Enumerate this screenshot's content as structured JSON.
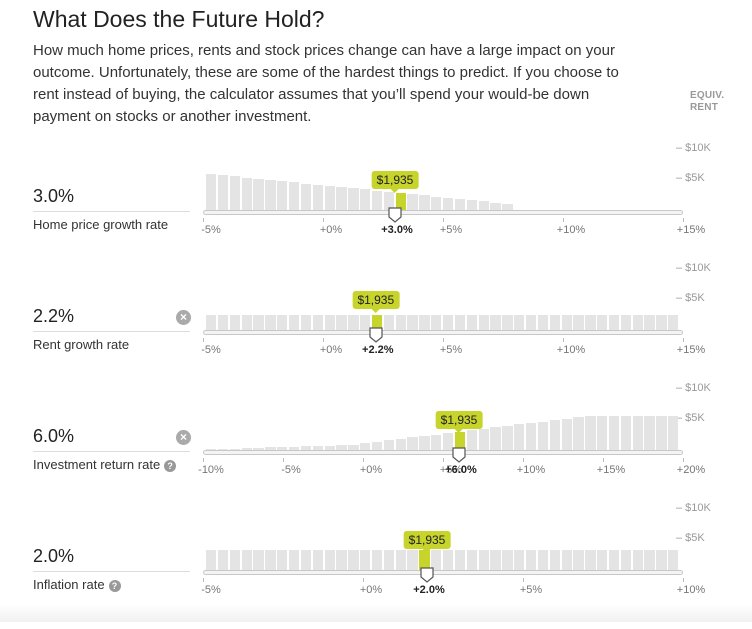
{
  "header": {
    "title": "What Does the Future Hold?",
    "description": "How much home prices, rents and stock prices change can have a large impact on your outcome. Unfortunately, these are some of the hardest things to predict. If you choose to rent instead of buying, the calculator assumes that you’ll spend your would-be down payment on stocks or another investment.",
    "equiv_label": "EQUIV. RENT"
  },
  "scale_labels": [
    "– $10K",
    "– $5K"
  ],
  "icons": {
    "clear": "clear-x-icon",
    "help": "question-mark-icon",
    "handle": "slider-handle-icon"
  },
  "colors": {
    "accent": "#c7d42b",
    "bar": "#e4e4e4"
  },
  "sliders": [
    {
      "id": "home-price",
      "value_display": "3.0%",
      "label": "Home price growth rate",
      "has_help": false,
      "has_clear": false,
      "min": -5,
      "max": 15,
      "value": 3.0,
      "ticks": [
        {
          "value": -5,
          "label": "-5%"
        },
        {
          "value": 0,
          "label": "+0%"
        },
        {
          "value": 5,
          "label": "+5%"
        },
        {
          "value": 10,
          "label": "+10%"
        },
        {
          "value": 15,
          "label": "+15%"
        }
      ],
      "current_label": "+3.0%",
      "equiv_rent": "$1,935"
    },
    {
      "id": "rent-growth",
      "value_display": "2.2%",
      "label": "Rent growth rate",
      "has_help": false,
      "has_clear": true,
      "min": -5,
      "max": 15,
      "value": 2.2,
      "ticks": [
        {
          "value": -5,
          "label": "-5%"
        },
        {
          "value": 0,
          "label": "+0%"
        },
        {
          "value": 5,
          "label": "+5%"
        },
        {
          "value": 10,
          "label": "+10%"
        },
        {
          "value": 15,
          "label": "+15%"
        }
      ],
      "current_label": "+2.2%",
      "equiv_rent": "$1,935"
    },
    {
      "id": "investment-return",
      "value_display": "6.0%",
      "label": "Investment return rate",
      "has_help": true,
      "has_clear": true,
      "min": -10,
      "max": 20,
      "value": 6.0,
      "ticks": [
        {
          "value": -10,
          "label": "-10%"
        },
        {
          "value": -5,
          "label": "-5%"
        },
        {
          "value": 0,
          "label": "+0%"
        },
        {
          "value": 5,
          "label": "+5%"
        },
        {
          "value": 10,
          "label": "+10%"
        },
        {
          "value": 15,
          "label": "+15%"
        },
        {
          "value": 20,
          "label": "+20%"
        }
      ],
      "current_label": "+6.0%",
      "equiv_rent": "$1,935"
    },
    {
      "id": "inflation",
      "value_display": "2.0%",
      "label": "Inflation rate",
      "has_help": true,
      "has_clear": false,
      "min": -5,
      "max": 10,
      "value": 2.0,
      "ticks": [
        {
          "value": -5,
          "label": "-5%"
        },
        {
          "value": 0,
          "label": "+0%"
        },
        {
          "value": 5,
          "label": "+5%"
        },
        {
          "value": 10,
          "label": "+10%"
        }
      ],
      "current_label": "+2.0%",
      "equiv_rent": "$1,935"
    }
  ]
}
